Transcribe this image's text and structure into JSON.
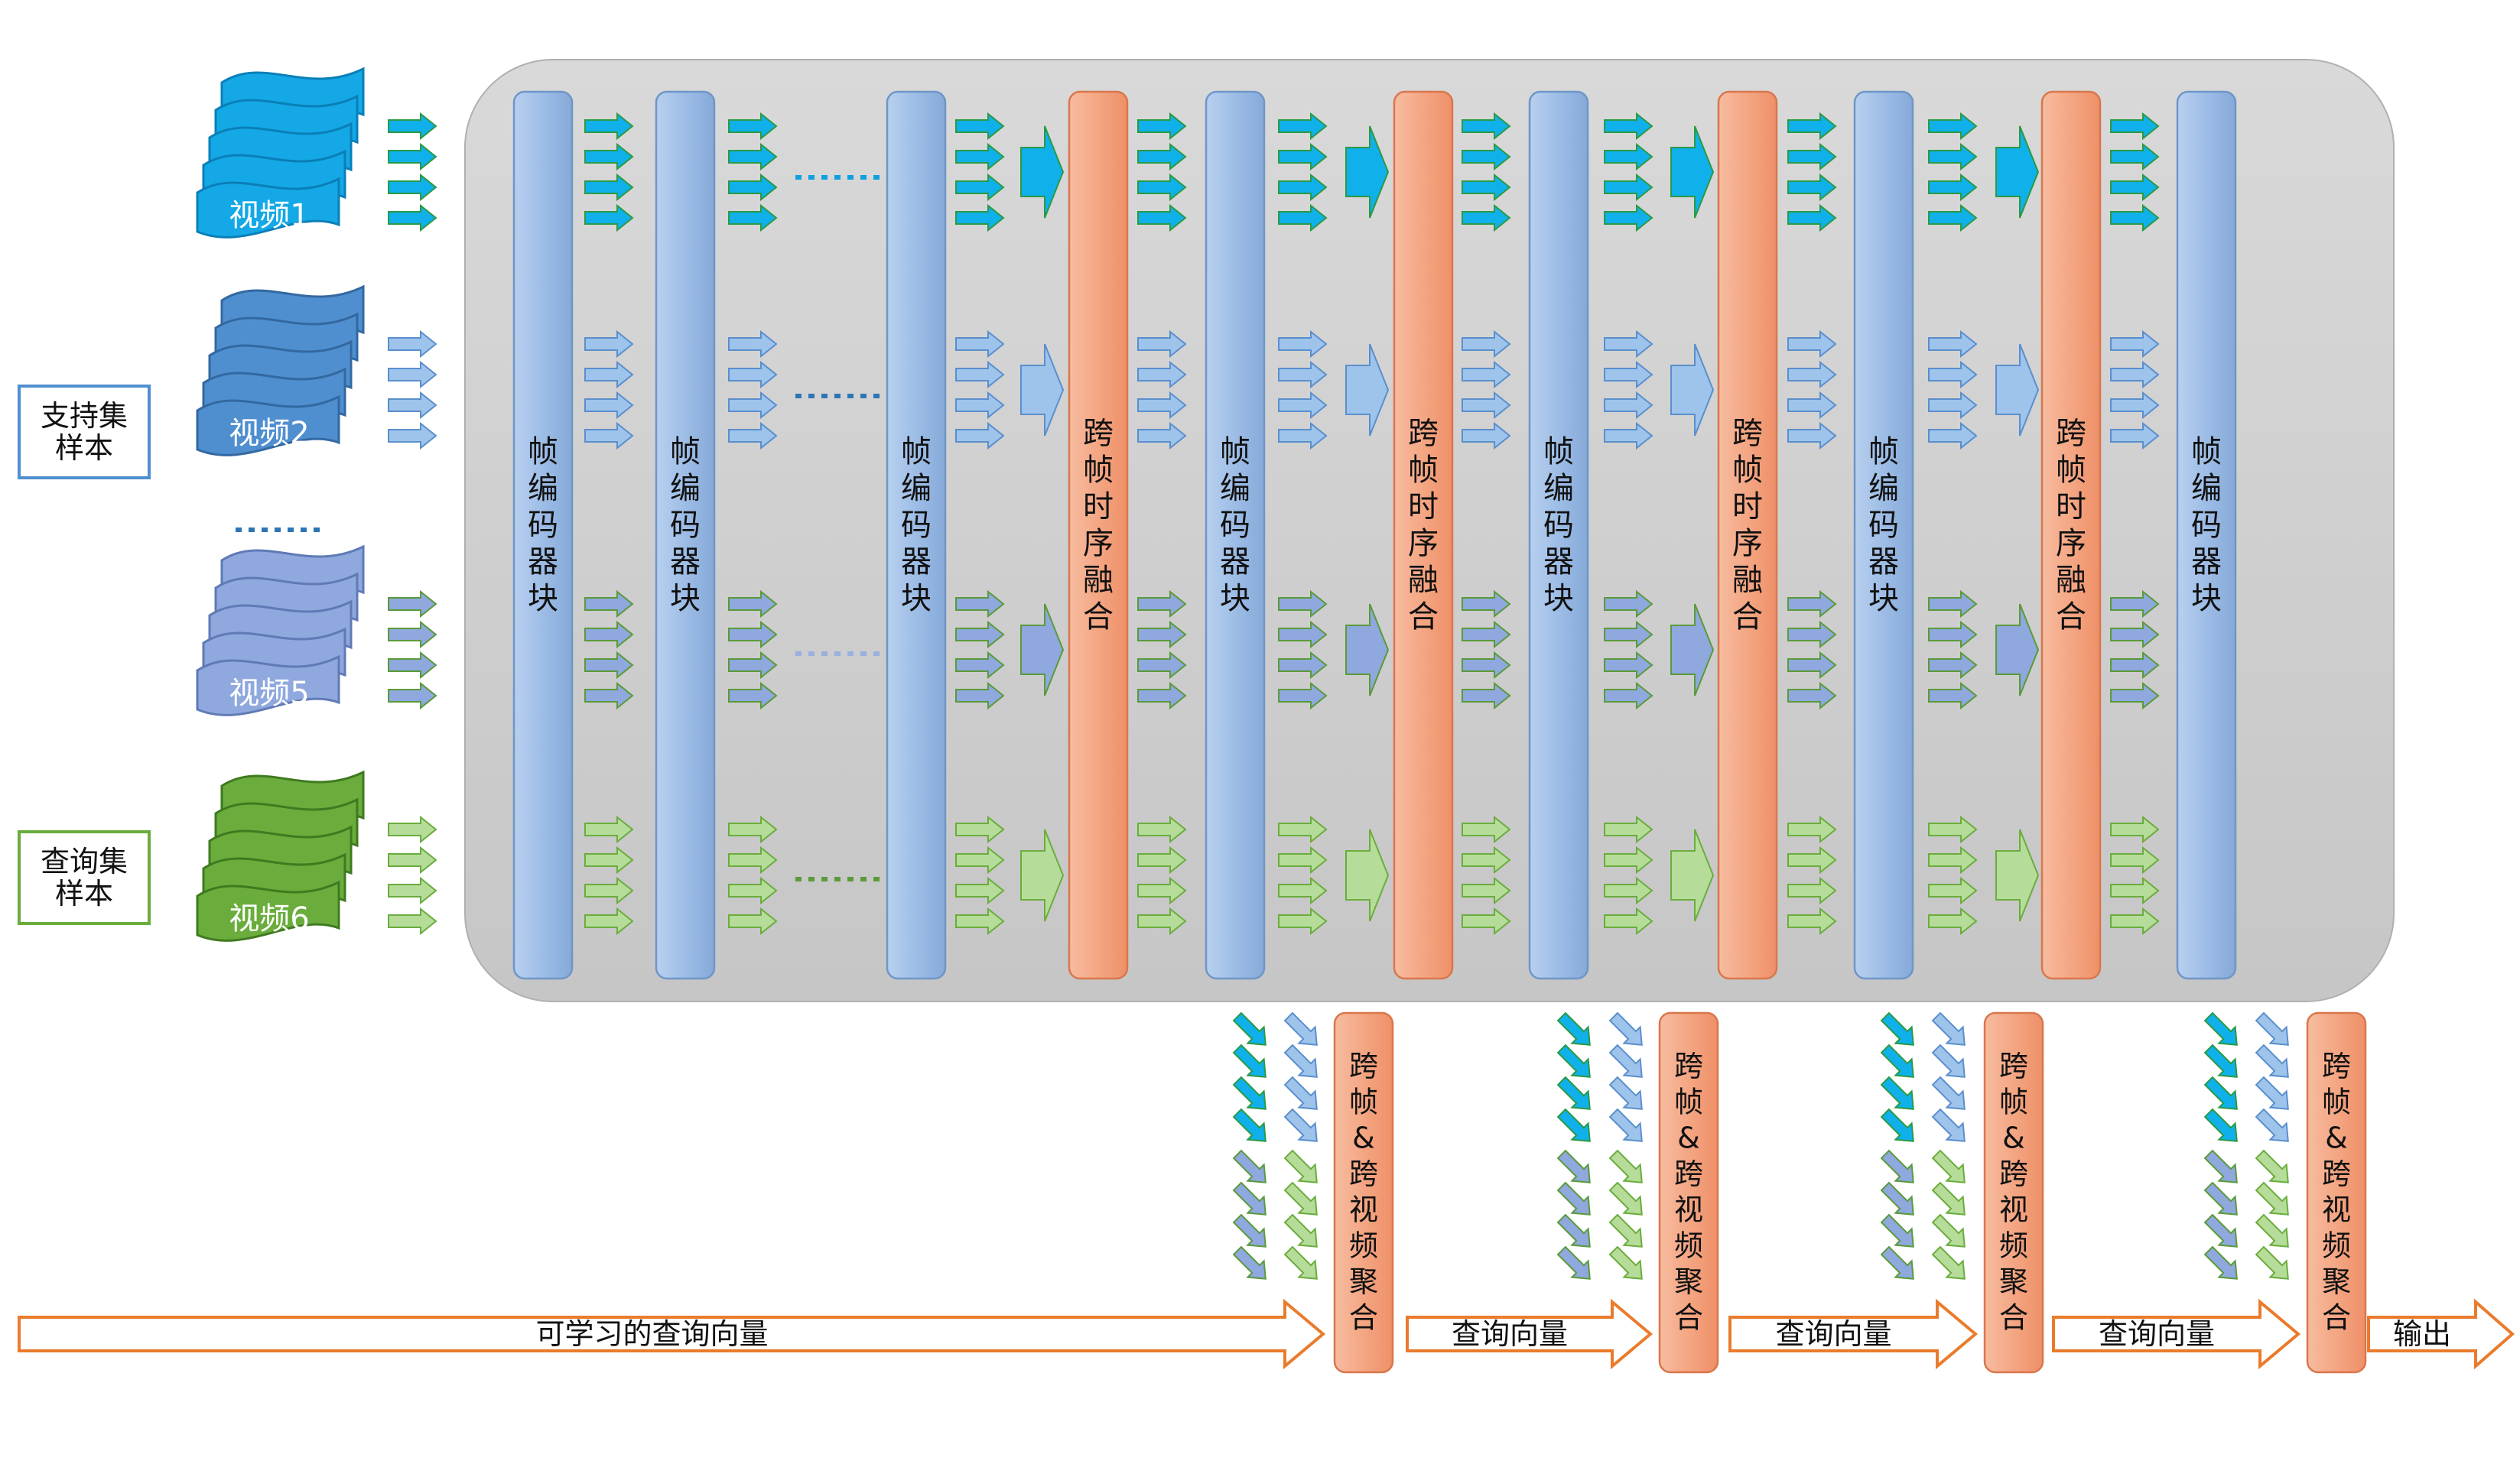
{
  "videos": [
    {
      "label": "视频1",
      "color": "#14a8e6",
      "dark": "#0a7fb8"
    },
    {
      "label": "视频2",
      "color": "#4f8fd0",
      "dark": "#3368a0"
    },
    {
      "label": "视频5",
      "color": "#8fa8de",
      "dark": "#5f7ab5"
    },
    {
      "label": "视频6",
      "color": "#6aad3c",
      "dark": "#3f7a20"
    }
  ],
  "side_labels": {
    "support": [
      "支持集",
      "样本"
    ],
    "query": [
      "查询集",
      "样本"
    ]
  },
  "blocks": {
    "encoder": "帧编码器块",
    "temporal_fusion": "跨帧时序融合",
    "aggregation": "跨帧&跨视频聚合"
  },
  "bottom_arrows": {
    "learnable_query": "可学习的查询向量",
    "query_vector": "查询向量",
    "output": "输出"
  },
  "colors": {
    "encoder": "#9dbde6",
    "fusion": "#f4a683",
    "container": "#cfcfcf",
    "bottom_arrow_stroke": "#ea7b2c",
    "side_label_blue": "#4f8fd0",
    "side_label_green": "#6aad3c"
  }
}
